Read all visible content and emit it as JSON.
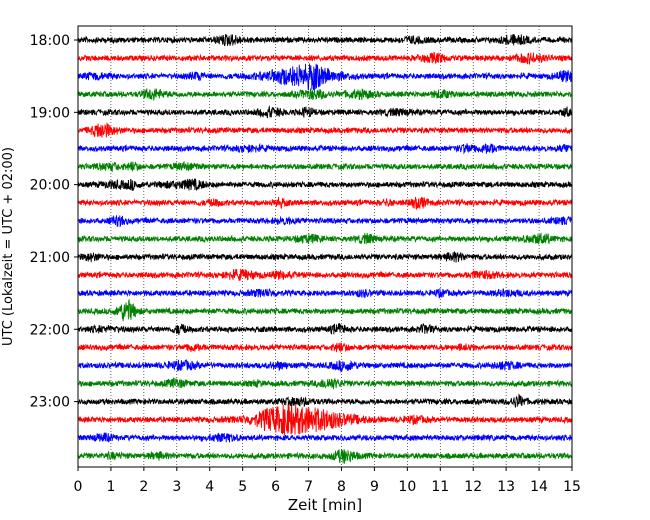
{
  "chart_data": {
    "type": "line",
    "variant": "helicorder",
    "xlabel": "Zeit  [min]",
    "ylabel": "UTC (Lokalzeit = UTC + 02:00)",
    "xlim": [
      0,
      15
    ],
    "x_ticks": [
      "0",
      "1",
      "2",
      "3",
      "4",
      "5",
      "6",
      "7",
      "8",
      "9",
      "10",
      "11",
      "12",
      "13",
      "14",
      "15"
    ],
    "y_ticks": [
      "18:00",
      "19:00",
      "20:00",
      "21:00",
      "22:00",
      "23:00"
    ],
    "trace_interval_min": 15,
    "traces_per_hour": 4,
    "trace_count": 24,
    "trace_colors": [
      "#000000",
      "#ff0000",
      "#0000ff",
      "#008000"
    ],
    "grid_x": true,
    "events": [
      {
        "trace": 2,
        "x_center": 6.8,
        "width": 3.0,
        "amplitude": 9
      },
      {
        "trace": 21,
        "x_center": 6.8,
        "width": 4.0,
        "amplitude": 11
      }
    ]
  }
}
